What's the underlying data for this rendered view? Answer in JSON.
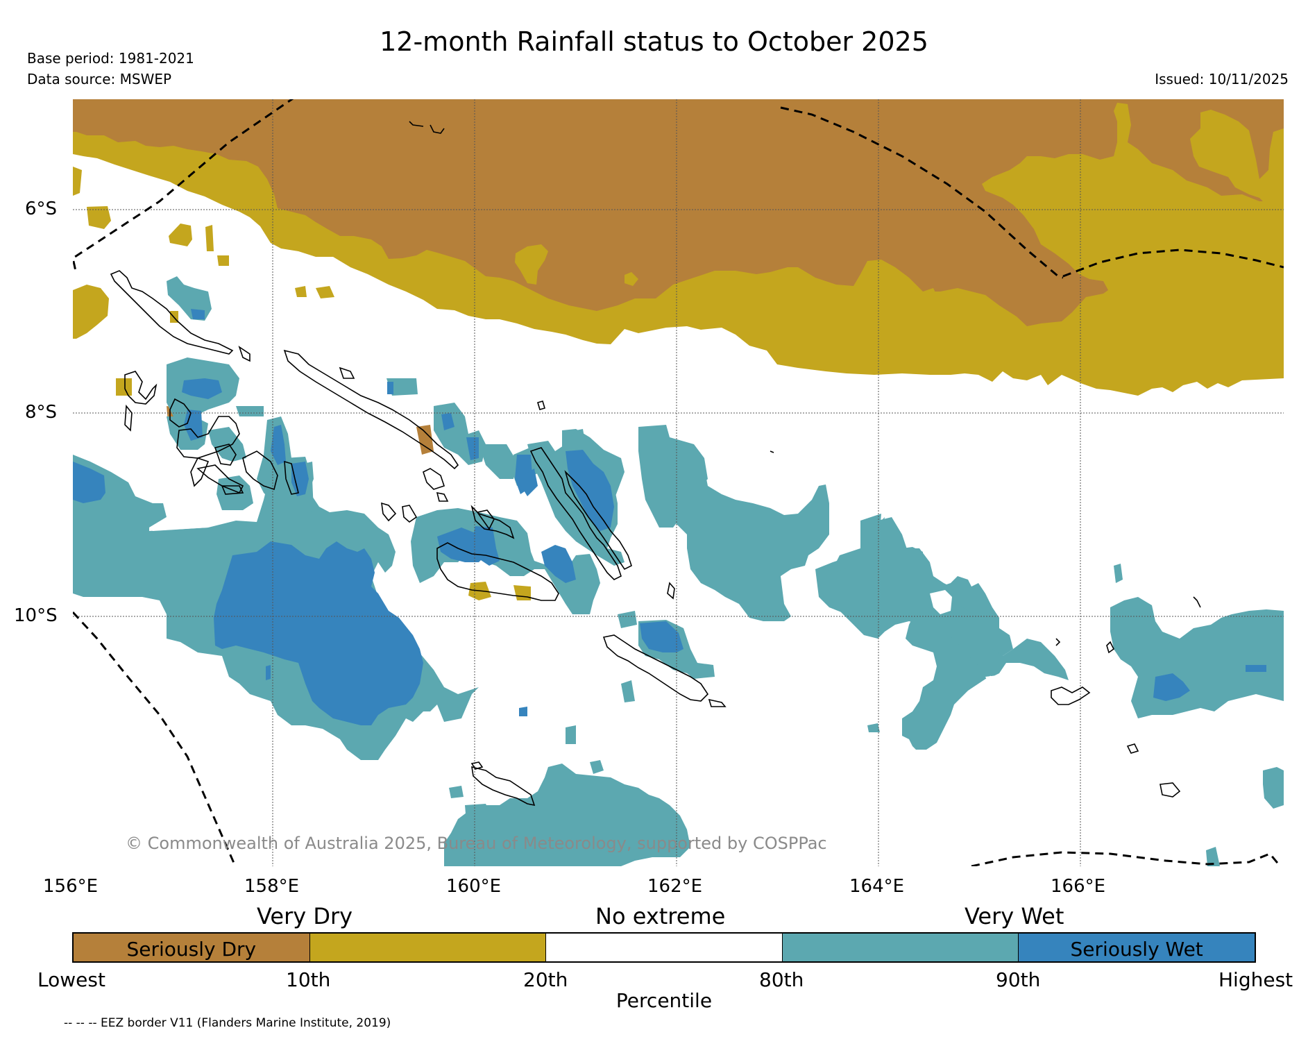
{
  "header": {
    "title": "12-month Rainfall status to October 2025",
    "base_period": "Base period: 1981-2021",
    "data_source": "Data source: MSWEP",
    "issued": "Issued: 10/11/2025"
  },
  "map": {
    "lat_labels": [
      "6°S",
      "8°S",
      "10°S"
    ],
    "lon_labels": [
      "156°E",
      "158°E",
      "160°E",
      "162°E",
      "164°E",
      "166°E"
    ],
    "copyright": "© Commonwealth of Australia 2025, Bureau of Meteorology, supported by COSPPac",
    "colors": {
      "seriously_dry": "#b5803a",
      "very_dry": "#c4a61e",
      "no_extreme": "#ffffff",
      "very_wet": "#5ca8b0",
      "seriously_wet": "#3684bd"
    }
  },
  "legend": {
    "category_very_dry": "Very Dry",
    "category_no_extreme": "No extreme",
    "category_very_wet": "Very Wet",
    "seg_seriously_dry": "Seriously Dry",
    "seg_seriously_wet": "Seriously Wet",
    "ticks": [
      "Lowest",
      "10th",
      "20th",
      "80th",
      "90th",
      "Highest"
    ],
    "axis_label": "Percentile"
  },
  "footnote": "-- -- -- EEZ border V11 (Flanders Marine Institute, 2019)"
}
